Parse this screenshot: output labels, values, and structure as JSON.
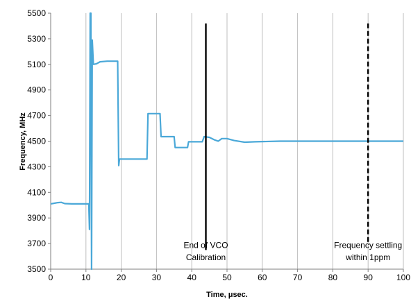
{
  "chart_data": {
    "type": "line",
    "title": "",
    "xlabel": "Time, μsec.",
    "ylabel": "Frequency, MHz",
    "xlim": [
      0,
      100
    ],
    "ylim": [
      3500,
      5500
    ],
    "xticks": [
      0,
      10,
      20,
      30,
      40,
      50,
      60,
      70,
      80,
      90,
      100
    ],
    "yticks": [
      3500,
      3700,
      3900,
      4100,
      4300,
      4500,
      4700,
      4900,
      5100,
      5300,
      5500
    ],
    "grid": "vertical",
    "line_color": "#4aa8d8",
    "series": [
      {
        "points": [
          [
            0,
            4010
          ],
          [
            1,
            4015
          ],
          [
            2,
            4020
          ],
          [
            3,
            4022
          ],
          [
            4,
            4012
          ],
          [
            6,
            4010
          ],
          [
            9,
            4010
          ],
          [
            10.8,
            4010
          ],
          [
            11,
            3810
          ],
          [
            11.2,
            5500
          ],
          [
            11.4,
            5500
          ],
          [
            11.6,
            3500
          ],
          [
            11.8,
            5290
          ],
          [
            12.1,
            5100
          ],
          [
            13,
            5105
          ],
          [
            14,
            5120
          ],
          [
            16,
            5125
          ],
          [
            19,
            5125
          ],
          [
            19.3,
            4310
          ],
          [
            19.5,
            4360
          ],
          [
            27.3,
            4360
          ],
          [
            27.6,
            4715
          ],
          [
            31,
            4715
          ],
          [
            31.3,
            4535
          ],
          [
            35,
            4535
          ],
          [
            35.3,
            4450
          ],
          [
            38.8,
            4450
          ],
          [
            39.1,
            4495
          ],
          [
            43,
            4495
          ],
          [
            43.5,
            4535
          ],
          [
            45,
            4530
          ],
          [
            46.5,
            4510
          ],
          [
            47.5,
            4500
          ],
          [
            48.5,
            4520
          ],
          [
            50,
            4520
          ],
          [
            52,
            4505
          ],
          [
            55,
            4492
          ],
          [
            58,
            4495
          ],
          [
            65,
            4500
          ],
          [
            100,
            4500
          ]
        ]
      }
    ],
    "annotations": [
      {
        "lines": [
          "End of VCO",
          "Calibration"
        ],
        "x": 44,
        "style": "solid",
        "y_top": 5420,
        "y_bottom": 3650,
        "label_y": [
          3665,
          3570
        ]
      },
      {
        "lines": [
          "Frequency settling",
          "within 1ppm"
        ],
        "x": 90,
        "style": "dashed",
        "y_top": 5420,
        "y_bottom": 3700,
        "label_y": [
          3665,
          3570
        ]
      }
    ]
  }
}
